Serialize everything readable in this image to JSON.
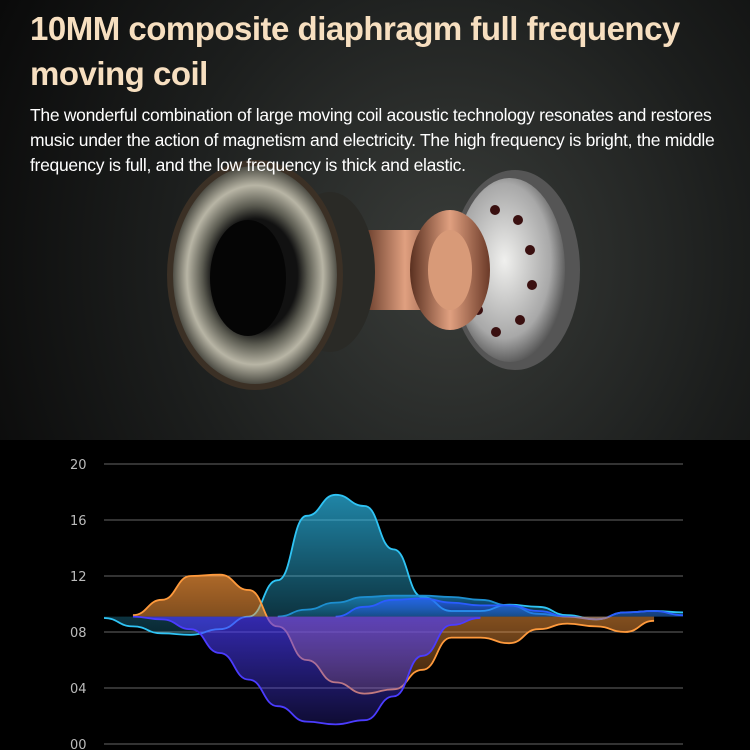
{
  "header": {
    "title": "10MM composite diaphragm full frequency moving coil",
    "description": "The wonderful combination of large moving coil acoustic technology resonates and restores music under the action of magnetism and electricity. The high frequency is bright, the middle frequency is full, and the low frequency is thick and elastic."
  },
  "illustration": {
    "subject": "speaker-driver-exploded-view"
  },
  "chart_data": {
    "type": "area",
    "title": "",
    "xlabel": "",
    "ylabel": "",
    "ylim": [
      0,
      20
    ],
    "yticks": [
      "20",
      "16",
      "12",
      "08",
      "04",
      "00"
    ],
    "grid": true,
    "baseline": 9.1,
    "series": [
      {
        "color": "#2fc4f5",
        "values": [
          9.0,
          8.4,
          7.9,
          7.8,
          8.2,
          9.1,
          11.7,
          16.3,
          17.8,
          17.0,
          13.9,
          10.5,
          9.5,
          9.5,
          9.95,
          9.8,
          9.2,
          8.9,
          9.4,
          9.5,
          9.4
        ]
      },
      {
        "color": "#1d8fd0",
        "values": [
          null,
          null,
          null,
          null,
          null,
          null,
          9.1,
          9.6,
          10.1,
          10.5,
          10.6,
          10.6,
          10.5,
          10.3,
          9.9,
          9.3,
          9.1,
          null,
          null,
          null,
          null
        ]
      },
      {
        "color": "#2a5cff",
        "values": [
          null,
          null,
          null,
          null,
          null,
          null,
          null,
          null,
          9.1,
          9.8,
          10.3,
          10.4,
          10.1,
          9.9,
          9.9,
          9.5,
          9.1,
          8.9,
          9.4,
          9.5,
          9.2
        ]
      },
      {
        "color": "#ff9a3c",
        "values": [
          null,
          9.2,
          10.3,
          12.0,
          12.1,
          11.0,
          8.4,
          6.0,
          4.4,
          3.6,
          3.9,
          5.3,
          7.6,
          7.6,
          7.2,
          8.2,
          8.6,
          8.4,
          8.0,
          8.8,
          null
        ]
      },
      {
        "color": "#4b3cff",
        "values": [
          null,
          9.1,
          8.9,
          8.2,
          6.5,
          4.6,
          2.7,
          1.6,
          1.4,
          1.7,
          3.4,
          6.3,
          8.5,
          9.0,
          null,
          null,
          null,
          null,
          null,
          null,
          null
        ]
      }
    ]
  }
}
